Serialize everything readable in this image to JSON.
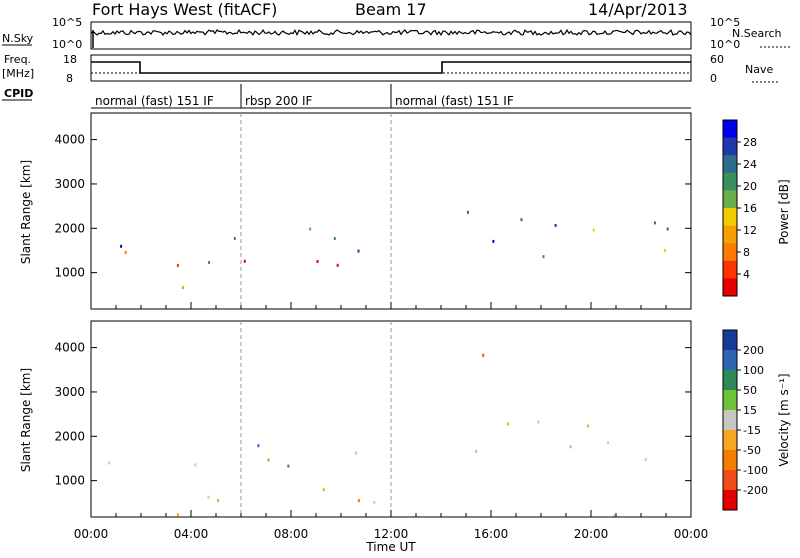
{
  "header": {
    "site": "Fort Hays West (fitACF)",
    "beam": "Beam 17",
    "date": "14/Apr/2013"
  },
  "strips": {
    "nsky_label": "N.Sky",
    "nsky_ticks": [
      "10^5",
      "10^0"
    ],
    "nsearch_label": "N.Search",
    "nsearch_ticks": [
      "10^5",
      "10^0"
    ],
    "freq_label": "Freq.",
    "freq_unit": "[MHz]",
    "freq_ticks": [
      "18",
      "8"
    ],
    "nave_label": "Nave",
    "nave_ticks": [
      "60",
      "0"
    ],
    "cpid_label": "CPID"
  },
  "modes": [
    {
      "label": "normal (fast) 151 IF",
      "start_h": 0,
      "end_h": 6
    },
    {
      "label": "rbsp 200 IF",
      "start_h": 6,
      "end_h": 12
    },
    {
      "label": "normal (fast) 151 IF",
      "start_h": 12,
      "end_h": 24
    }
  ],
  "chart_data": [
    {
      "type": "heatmap",
      "panel": "power",
      "ylabel": "Slant Range [km]",
      "xlabel": "Time UT",
      "xlim_hours": [
        0,
        24
      ],
      "ylim": [
        180,
        4600
      ],
      "yticks": [
        1000,
        2000,
        3000,
        4000
      ],
      "xtick_labels": [
        "00:00",
        "04:00",
        "08:00",
        "12:00",
        "16:00",
        "20:00",
        "00:00"
      ],
      "colorbar": {
        "label": "Power [dB]",
        "ticks": [
          "28",
          "24",
          "20",
          "16",
          "12",
          "8",
          "4"
        ],
        "colors": [
          "#0000ee",
          "#1e3aa8",
          "#2e6b8c",
          "#3a8f5e",
          "#6ab04a",
          "#f2cc00",
          "#f4a000",
          "#ff7a00",
          "#ff3300",
          "#e60000"
        ]
      }
    },
    {
      "type": "heatmap",
      "panel": "velocity",
      "ylabel": "Slant Range [km]",
      "xlabel": "Time UT",
      "xlim_hours": [
        0,
        24
      ],
      "ylim": [
        180,
        4600
      ],
      "yticks": [
        1000,
        2000,
        3000,
        4000
      ],
      "xtick_labels": [
        "00:00",
        "04:00",
        "08:00",
        "12:00",
        "16:00",
        "20:00",
        "00:00"
      ],
      "colorbar": {
        "label": "Velocity [m s⁻¹]",
        "ticks": [
          "200",
          "100",
          "50",
          "15",
          "-15",
          "-50",
          "-100",
          "-200"
        ],
        "colors": [
          "#1a3a9a",
          "#2f64b0",
          "#2f8a5a",
          "#6cc43a",
          "#c8c8c0",
          "#f5a623",
          "#f57c00",
          "#f04a1a",
          "#e00000"
        ]
      }
    }
  ]
}
